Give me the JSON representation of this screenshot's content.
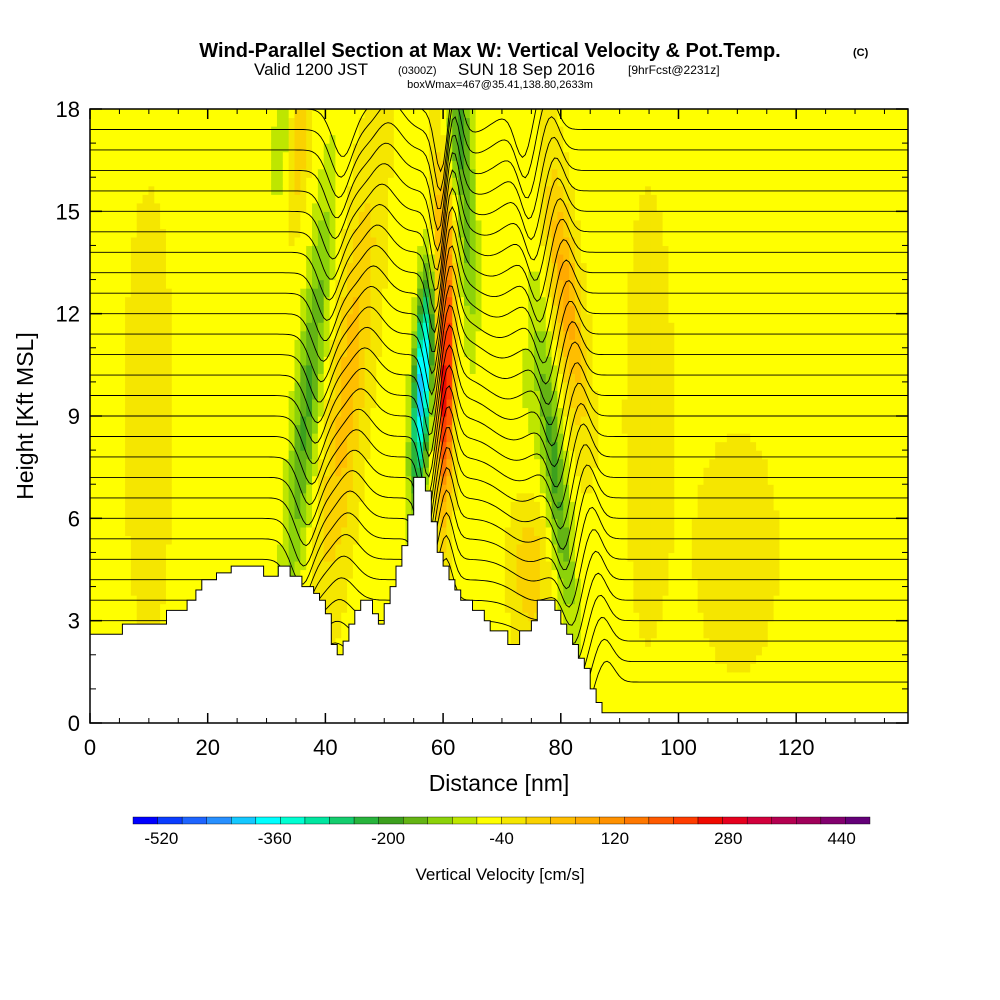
{
  "header": {
    "title": "Wind-Parallel Section at Max W: Vertical Velocity & Pot.Temp.",
    "copyright": "(C)",
    "valid_prefix": "Valid 1200 JST",
    "valid_utc": "(0300Z)",
    "valid_date": "SUN 18 Sep 2016",
    "forecast": "[9hrFcst@2231z]",
    "box_info": "boxWmax=467@35.41,138.80,2633m"
  },
  "chart_data": {
    "type": "heatmap",
    "title": "Wind-Parallel Section at Max W: Vertical Velocity & Pot.Temp.",
    "xlabel": "Distance [nm]",
    "ylabel": "Height [Kft MSL]",
    "xlim": [
      0,
      139
    ],
    "ylim": [
      0,
      18
    ],
    "xticks": [
      0,
      20,
      40,
      60,
      80,
      100,
      120
    ],
    "xtick_labels": [
      "0",
      "20",
      "40",
      "60",
      "80",
      "100",
      "120"
    ],
    "yticks": [
      0,
      3,
      6,
      9,
      12,
      15,
      18
    ],
    "ytick_labels": [
      "0",
      "3",
      "6",
      "9",
      "12",
      "15",
      "18"
    ],
    "grid": false,
    "background_velocity": 30,
    "terrain_kft": [
      [
        0,
        2.6
      ],
      [
        5.5,
        2.6
      ],
      [
        5.5,
        2.9
      ],
      [
        13,
        2.9
      ],
      [
        13,
        3.3
      ],
      [
        16.5,
        3.3
      ],
      [
        16.5,
        3.6
      ],
      [
        18,
        3.6
      ],
      [
        18,
        3.9
      ],
      [
        19,
        3.9
      ],
      [
        19,
        4.2
      ],
      [
        21.5,
        4.2
      ],
      [
        21.5,
        4.4
      ],
      [
        24,
        4.4
      ],
      [
        24,
        4.6
      ],
      [
        29.5,
        4.6
      ],
      [
        29.5,
        4.3
      ],
      [
        32,
        4.3
      ],
      [
        32,
        4.6
      ],
      [
        34,
        4.6
      ],
      [
        34,
        4.3
      ],
      [
        36,
        4.3
      ],
      [
        36,
        4.0
      ],
      [
        38,
        4.0
      ],
      [
        38,
        3.8
      ],
      [
        39,
        3.8
      ],
      [
        39,
        3.6
      ],
      [
        40,
        3.6
      ],
      [
        40,
        3.2
      ],
      [
        41,
        3.2
      ],
      [
        41,
        2.3
      ],
      [
        42,
        2.3
      ],
      [
        42,
        2.0
      ],
      [
        43,
        2.0
      ],
      [
        43,
        2.4
      ],
      [
        44,
        2.4
      ],
      [
        44,
        2.9
      ],
      [
        45,
        2.9
      ],
      [
        45,
        3.3
      ],
      [
        46,
        3.3
      ],
      [
        46,
        3.6
      ],
      [
        48,
        3.6
      ],
      [
        48,
        3.2
      ],
      [
        49,
        3.2
      ],
      [
        49,
        2.9
      ],
      [
        50,
        2.9
      ],
      [
        50,
        3.5
      ],
      [
        51,
        3.5
      ],
      [
        51,
        4.0
      ],
      [
        52,
        4.0
      ],
      [
        52,
        4.6
      ],
      [
        53,
        4.6
      ],
      [
        53,
        5.2
      ],
      [
        54,
        5.2
      ],
      [
        54,
        6.1
      ],
      [
        55,
        6.1
      ],
      [
        55,
        7.2
      ],
      [
        57,
        7.2
      ],
      [
        57,
        6.8
      ],
      [
        58,
        6.8
      ],
      [
        58,
        5.9
      ],
      [
        59,
        5.9
      ],
      [
        59,
        5.0
      ],
      [
        60,
        5.0
      ],
      [
        60,
        4.6
      ],
      [
        61,
        4.6
      ],
      [
        61,
        4.2
      ],
      [
        62,
        4.2
      ],
      [
        62,
        3.9
      ],
      [
        63,
        3.9
      ],
      [
        63,
        3.6
      ],
      [
        65,
        3.6
      ],
      [
        65,
        3.3
      ],
      [
        67,
        3.3
      ],
      [
        67,
        3.0
      ],
      [
        68,
        3.0
      ],
      [
        68,
        2.7
      ],
      [
        71,
        2.7
      ],
      [
        71,
        2.3
      ],
      [
        73,
        2.3
      ],
      [
        73,
        2.7
      ],
      [
        75,
        2.7
      ],
      [
        75,
        3.0
      ],
      [
        76,
        3.0
      ],
      [
        76,
        3.6
      ],
      [
        79,
        3.6
      ],
      [
        79,
        3.3
      ],
      [
        80,
        3.3
      ],
      [
        80,
        2.9
      ],
      [
        81,
        2.9
      ],
      [
        81,
        2.6
      ],
      [
        82,
        2.6
      ],
      [
        82,
        2.3
      ],
      [
        83,
        2.3
      ],
      [
        83,
        1.9
      ],
      [
        84,
        1.9
      ],
      [
        84,
        1.6
      ],
      [
        85,
        1.6
      ],
      [
        85,
        1.0
      ],
      [
        86,
        1.0
      ],
      [
        86,
        0.6
      ],
      [
        87,
        0.6
      ],
      [
        87,
        0.3
      ],
      [
        139,
        0.3
      ]
    ],
    "velocity_features": [
      {
        "x": 37,
        "y": 9.5,
        "sx": 2.2,
        "sy": 6,
        "slope_nm_per_kft": 0.55,
        "value": -160
      },
      {
        "x": 44,
        "y": 10,
        "sx": 3,
        "sy": 6,
        "slope_nm_per_kft": 0.6,
        "value": 110
      },
      {
        "x": 56.5,
        "y": 10,
        "sx": 1.5,
        "sy": 3.2,
        "slope_nm_per_kft": 0.3,
        "value": -440
      },
      {
        "x": 60.5,
        "y": 10,
        "sx": 1.2,
        "sy": 3.5,
        "slope_nm_per_kft": 0.1,
        "value": 380
      },
      {
        "x": 59.5,
        "y": 14.5,
        "sx": 1.8,
        "sy": 3,
        "slope_nm_per_kft": 0.1,
        "value": 130
      },
      {
        "x": 64,
        "y": 15,
        "sx": 1.6,
        "sy": 4,
        "slope_nm_per_kft": -0.2,
        "value": -130
      },
      {
        "x": 62,
        "y": 17.3,
        "sx": 2,
        "sy": 1.5,
        "slope_nm_per_kft": 0,
        "value": -120
      },
      {
        "x": 74,
        "y": 9.5,
        "sx": 3,
        "sy": 5,
        "slope_nm_per_kft": -0.8,
        "value": -30
      },
      {
        "x": 79,
        "y": 7.5,
        "sx": 1.8,
        "sy": 4.5,
        "slope_nm_per_kft": -0.6,
        "value": -160
      },
      {
        "x": 81,
        "y": 12.5,
        "sx": 2.2,
        "sy": 3.5,
        "slope_nm_per_kft": -0.6,
        "value": 150
      },
      {
        "x": 75,
        "y": 4.5,
        "sx": 3,
        "sy": 2,
        "slope_nm_per_kft": 0,
        "value": 90
      },
      {
        "x": 33,
        "y": 17,
        "sx": 2,
        "sy": 2,
        "slope_nm_per_kft": 0.4,
        "value": -90
      },
      {
        "x": 35,
        "y": 17,
        "sx": 2,
        "sy": 2,
        "slope_nm_per_kft": 0.4,
        "value": 110
      },
      {
        "x": 10,
        "y": 9,
        "sx": 5,
        "sy": 8,
        "slope_nm_per_kft": 0,
        "value": 20
      },
      {
        "x": 95,
        "y": 9,
        "sx": 5,
        "sy": 8,
        "slope_nm_per_kft": 0,
        "value": 20
      },
      {
        "x": 110,
        "y": 5,
        "sx": 6,
        "sy": 3,
        "slope_nm_per_kft": 0,
        "value": 40
      }
    ],
    "theta_contours": {
      "base_heights_kft": [
        1.2,
        1.8,
        2.4,
        3.0,
        3.6,
        4.2,
        4.8,
        5.4,
        6.0,
        6.6,
        7.2,
        7.8,
        8.4,
        9.0,
        9.6,
        10.2,
        10.8,
        11.4,
        12.0,
        12.6,
        13.2,
        13.8,
        14.4,
        15.0,
        15.6,
        16.2,
        16.8,
        17.4,
        18.0
      ],
      "waves": [
        {
          "x": 38,
          "sx": 2.5,
          "amp_kft": -1.4,
          "slope_nm_per_kft": 0.55
        },
        {
          "x": 46,
          "sx": 3,
          "amp_kft": 0.8,
          "slope_nm_per_kft": 0.6
        },
        {
          "x": 57.5,
          "sx": 1.5,
          "amp_kft": -1.8,
          "slope_nm_per_kft": 0.25
        },
        {
          "x": 61,
          "sx": 1.6,
          "amp_kft": 1.5,
          "slope_nm_per_kft": 0.1
        },
        {
          "x": 72,
          "sx": 5,
          "amp_kft": -0.7,
          "slope_nm_per_kft": -0.8
        },
        {
          "x": 79,
          "sx": 2,
          "amp_kft": -1.4,
          "slope_nm_per_kft": -0.6
        },
        {
          "x": 83,
          "sx": 2,
          "amp_kft": 1.0,
          "slope_nm_per_kft": -0.6
        }
      ]
    },
    "colorbar": {
      "label": "Vertical Velocity [cm/s]",
      "min": -560,
      "max": 480,
      "step": 40,
      "tick_values": [
        -520,
        -360,
        -200,
        -40,
        120,
        280,
        440
      ],
      "tick_labels": [
        "-520",
        "-360",
        "-200",
        "-40",
        "120",
        "280",
        "440"
      ],
      "colors": [
        "#0000ff",
        "#0a3cff",
        "#1e64ff",
        "#2890ff",
        "#14c8ff",
        "#00ffff",
        "#00ffd2",
        "#00e6a0",
        "#14cd6e",
        "#28b43c",
        "#3ca01e",
        "#64b414",
        "#8cd20a",
        "#bee600",
        "#ffff00",
        "#f5e600",
        "#fad200",
        "#ffbe00",
        "#ffaa00",
        "#ff9100",
        "#ff7800",
        "#ff5a00",
        "#ff3c00",
        "#f00a00",
        "#e6001e",
        "#d2003c",
        "#b40050",
        "#a0005a",
        "#82006e",
        "#640078"
      ]
    }
  }
}
